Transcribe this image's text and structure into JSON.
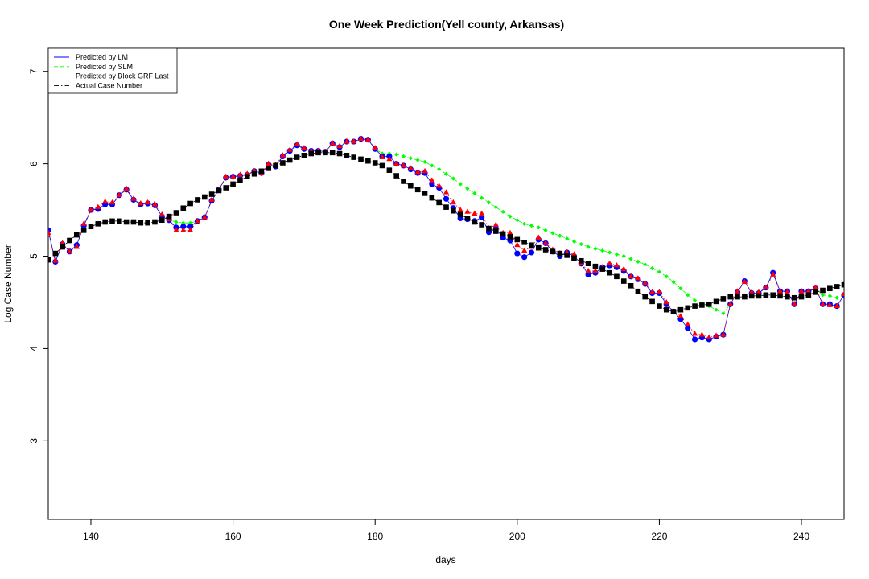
{
  "chart_data": {
    "type": "line",
    "title": "One Week Prediction(Yell county, Arkansas)",
    "xlabel": "days",
    "ylabel": "Log Case Number",
    "xlim": [
      134,
      246
    ],
    "ylim": [
      2.15,
      7.25
    ],
    "xticks": [
      140,
      160,
      180,
      200,
      220,
      240
    ],
    "yticks": [
      3,
      4,
      5,
      6,
      7
    ],
    "grid": false,
    "legend_position": "top-left",
    "x": [
      134,
      135,
      136,
      137,
      138,
      139,
      140,
      141,
      142,
      143,
      144,
      145,
      146,
      147,
      148,
      149,
      150,
      151,
      152,
      153,
      154,
      155,
      156,
      157,
      158,
      159,
      160,
      161,
      162,
      163,
      164,
      165,
      166,
      167,
      168,
      169,
      170,
      171,
      172,
      173,
      174,
      175,
      176,
      177,
      178,
      179,
      180,
      181,
      182,
      183,
      184,
      185,
      186,
      187,
      188,
      189,
      190,
      191,
      192,
      193,
      194,
      195,
      196,
      197,
      198,
      199,
      200,
      201,
      202,
      203,
      204,
      205,
      206,
      207,
      208,
      209,
      210,
      211,
      212,
      213,
      214,
      215,
      216,
      217,
      218,
      219,
      220,
      221,
      222,
      223,
      224,
      225,
      226,
      227,
      228,
      229,
      230,
      231,
      232,
      233,
      234,
      235,
      236,
      237,
      238,
      239,
      240,
      241,
      242,
      243,
      244,
      245,
      246
    ],
    "series": [
      {
        "name": "Predicted by LM",
        "color": "#0000ff",
        "line": "solid",
        "marker": "circle",
        "values": [
          5.28,
          4.94,
          5.13,
          5.05,
          5.12,
          5.33,
          5.5,
          5.51,
          5.56,
          5.56,
          5.66,
          5.72,
          5.61,
          5.56,
          5.57,
          5.55,
          5.43,
          5.39,
          5.31,
          5.32,
          5.32,
          5.38,
          5.42,
          5.6,
          5.72,
          5.85,
          5.86,
          5.87,
          5.88,
          5.92,
          5.9,
          5.99,
          5.97,
          6.08,
          6.14,
          6.2,
          6.16,
          6.14,
          6.14,
          6.13,
          6.22,
          6.18,
          6.24,
          6.24,
          6.27,
          6.26,
          6.16,
          6.08,
          6.08,
          6.0,
          5.98,
          5.94,
          5.9,
          5.9,
          5.78,
          5.74,
          5.62,
          5.52,
          5.41,
          5.4,
          5.38,
          5.42,
          5.26,
          5.3,
          5.2,
          5.17,
          5.03,
          4.99,
          5.04,
          5.18,
          5.14,
          5.05,
          5.0,
          5.04,
          5.0,
          4.92,
          4.8,
          4.82,
          4.88,
          4.9,
          4.88,
          4.84,
          4.78,
          4.75,
          4.7,
          4.6,
          4.6,
          4.48,
          4.4,
          4.32,
          4.22,
          4.1,
          4.12,
          4.1,
          4.13,
          4.15,
          4.48,
          4.61,
          4.73,
          4.6,
          4.6,
          4.66,
          4.82,
          4.62,
          4.62,
          4.48,
          4.62,
          4.62,
          4.65,
          4.48,
          4.48,
          4.46,
          4.58
        ]
      },
      {
        "name": "Predicted by SLM",
        "color": "#00ff00",
        "line": "dashed",
        "marker": "diamond",
        "values": [
          5.28,
          4.94,
          5.13,
          5.05,
          5.12,
          5.33,
          5.5,
          5.51,
          5.56,
          5.56,
          5.66,
          5.72,
          5.61,
          5.56,
          5.57,
          5.55,
          5.43,
          5.39,
          5.37,
          5.36,
          5.36,
          5.38,
          5.42,
          5.6,
          5.72,
          5.85,
          5.86,
          5.87,
          5.88,
          5.92,
          5.9,
          5.99,
          5.97,
          6.08,
          6.14,
          6.2,
          6.16,
          6.14,
          6.14,
          6.13,
          6.22,
          6.18,
          6.24,
          6.24,
          6.27,
          6.26,
          6.16,
          6.11,
          6.11,
          6.1,
          6.08,
          6.06,
          6.04,
          6.02,
          5.98,
          5.94,
          5.89,
          5.84,
          5.78,
          5.73,
          5.68,
          5.63,
          5.58,
          5.53,
          5.48,
          5.43,
          5.39,
          5.35,
          5.33,
          5.31,
          5.28,
          5.25,
          5.22,
          5.19,
          5.16,
          5.13,
          5.1,
          5.08,
          5.06,
          5.04,
          5.02,
          5.0,
          4.97,
          4.94,
          4.91,
          4.87,
          4.83,
          4.78,
          4.72,
          4.65,
          4.58,
          4.52,
          4.49,
          4.46,
          4.42,
          4.38,
          4.48,
          4.61,
          4.73,
          4.6,
          4.6,
          4.66,
          4.82,
          4.62,
          4.62,
          4.48,
          4.62,
          4.62,
          4.65,
          4.58,
          4.57,
          4.55,
          4.58
        ]
      },
      {
        "name": "Predicted by Block GRF Last",
        "color": "#ff0000",
        "line": "dotted",
        "marker": "triangle",
        "values": [
          5.25,
          4.95,
          5.14,
          5.05,
          5.1,
          5.35,
          5.5,
          5.53,
          5.59,
          5.58,
          5.66,
          5.73,
          5.62,
          5.57,
          5.58,
          5.56,
          5.45,
          5.4,
          5.28,
          5.28,
          5.28,
          5.38,
          5.42,
          5.61,
          5.72,
          5.86,
          5.86,
          5.88,
          5.89,
          5.92,
          5.9,
          6.0,
          5.99,
          6.09,
          6.15,
          6.21,
          6.17,
          6.14,
          6.14,
          6.13,
          6.22,
          6.19,
          6.24,
          6.24,
          6.27,
          6.26,
          6.17,
          6.07,
          6.05,
          6.0,
          5.98,
          5.95,
          5.91,
          5.92,
          5.82,
          5.76,
          5.69,
          5.58,
          5.5,
          5.48,
          5.46,
          5.46,
          5.3,
          5.34,
          5.25,
          5.25,
          5.12,
          5.06,
          5.1,
          5.2,
          5.14,
          5.07,
          5.03,
          5.04,
          5.02,
          4.92,
          4.84,
          4.84,
          4.88,
          4.92,
          4.9,
          4.86,
          4.78,
          4.76,
          4.71,
          4.61,
          4.61,
          4.5,
          4.4,
          4.35,
          4.26,
          4.16,
          4.15,
          4.12,
          4.14,
          4.15,
          4.48,
          4.62,
          4.72,
          4.61,
          4.61,
          4.66,
          4.8,
          4.62,
          4.61,
          4.48,
          4.62,
          4.62,
          4.66,
          4.48,
          4.47,
          4.46,
          4.59
        ]
      },
      {
        "name": "Actual Case Number",
        "color": "#000000",
        "line": "dashdot",
        "marker": "square",
        "values": [
          4.96,
          5.03,
          5.1,
          5.17,
          5.23,
          5.28,
          5.32,
          5.35,
          5.37,
          5.38,
          5.38,
          5.37,
          5.37,
          5.36,
          5.36,
          5.37,
          5.39,
          5.43,
          5.47,
          5.52,
          5.57,
          5.61,
          5.64,
          5.67,
          5.71,
          5.74,
          5.78,
          5.82,
          5.86,
          5.89,
          5.92,
          5.95,
          5.98,
          6.01,
          6.04,
          6.07,
          6.09,
          6.11,
          6.12,
          6.12,
          6.12,
          6.11,
          6.09,
          6.07,
          6.05,
          6.03,
          6.01,
          5.98,
          5.93,
          5.87,
          5.81,
          5.76,
          5.72,
          5.68,
          5.63,
          5.58,
          5.53,
          5.49,
          5.45,
          5.41,
          5.37,
          5.34,
          5.3,
          5.27,
          5.24,
          5.21,
          5.18,
          5.15,
          5.12,
          5.09,
          5.07,
          5.05,
          5.03,
          5.01,
          4.98,
          4.95,
          4.92,
          4.89,
          4.86,
          4.82,
          4.78,
          4.73,
          4.68,
          4.62,
          4.56,
          4.51,
          4.46,
          4.42,
          4.4,
          4.42,
          4.44,
          4.46,
          4.47,
          4.48,
          4.51,
          4.54,
          4.56,
          4.56,
          4.56,
          4.57,
          4.57,
          4.58,
          4.58,
          4.57,
          4.56,
          4.55,
          4.56,
          4.58,
          4.61,
          4.63,
          4.65,
          4.67,
          4.69
        ]
      }
    ]
  }
}
